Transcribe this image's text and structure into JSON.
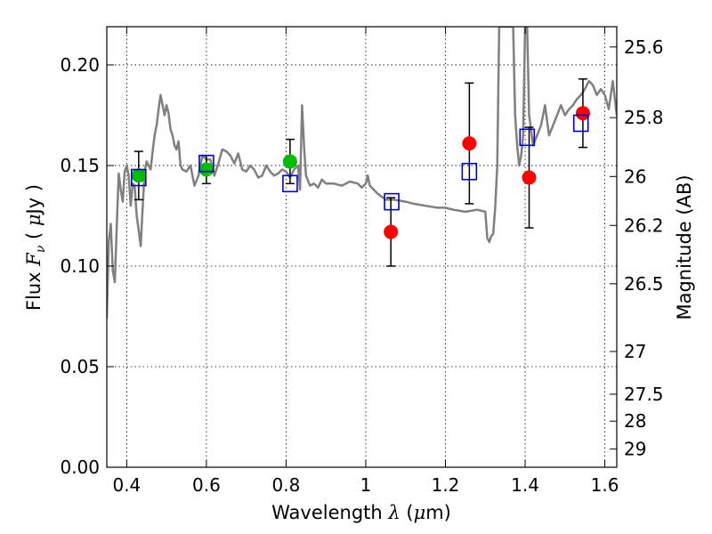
{
  "chart_data": {
    "type": "scatter",
    "xlabel": "Wavelength λ (μm)",
    "xlabel_parts": {
      "prefix": "Wavelength ",
      "symbol": "λ",
      "unit_open": " (",
      "unit_mu": "μ",
      "unit_rest": "m)"
    },
    "ylabel": "Flux F_ν (μJy)",
    "ylabel_parts": {
      "prefix": "Flux ",
      "symbol": "F",
      "subscript": "ν",
      "unit_open": " ( ",
      "unit_mu": "μ",
      "unit_rest": "Jy )"
    },
    "y2label": "Magnitude (AB)",
    "xlim": [
      0.35,
      1.63
    ],
    "ylim": [
      0.0,
      0.219
    ],
    "grid": true,
    "x_ticks": [
      0.4,
      0.6,
      0.8,
      1.0,
      1.2,
      1.4,
      1.6
    ],
    "x_tick_labels": [
      "0.4",
      "0.6",
      "0.8",
      "1",
      "1.2",
      "1.4",
      "1.6"
    ],
    "y_ticks": [
      0.0,
      0.05,
      0.1,
      0.15,
      0.2
    ],
    "y_tick_labels": [
      "0.00",
      "0.05",
      "0.10",
      "0.15",
      "0.20"
    ],
    "y2_ticks": [
      {
        "mag": 25.6,
        "label": "25.6"
      },
      {
        "mag": 25.8,
        "label": "25.8"
      },
      {
        "mag": 26.0,
        "label": "26"
      },
      {
        "mag": 26.2,
        "label": "26.2"
      },
      {
        "mag": 26.5,
        "label": "26.5"
      },
      {
        "mag": 27.0,
        "label": "27"
      },
      {
        "mag": 27.5,
        "label": "27.5"
      },
      {
        "mag": 28.0,
        "label": "28"
      },
      {
        "mag": 29.0,
        "label": "29"
      }
    ],
    "colors": {
      "spectrum": "#808080",
      "green": "#00bb00",
      "red": "#ff0000",
      "model": "#0000cc",
      "error": "#000000"
    },
    "series": [
      {
        "name": "model spectrum",
        "kind": "line",
        "x": [
          0.35,
          0.355,
          0.36,
          0.365,
          0.37,
          0.375,
          0.38,
          0.385,
          0.39,
          0.395,
          0.4,
          0.405,
          0.41,
          0.415,
          0.42,
          0.425,
          0.43,
          0.435,
          0.44,
          0.445,
          0.45,
          0.455,
          0.46,
          0.465,
          0.47,
          0.475,
          0.48,
          0.485,
          0.49,
          0.495,
          0.5,
          0.505,
          0.51,
          0.515,
          0.52,
          0.525,
          0.53,
          0.535,
          0.54,
          0.55,
          0.56,
          0.57,
          0.58,
          0.59,
          0.6,
          0.61,
          0.62,
          0.63,
          0.64,
          0.65,
          0.66,
          0.67,
          0.68,
          0.69,
          0.7,
          0.71,
          0.72,
          0.73,
          0.74,
          0.75,
          0.76,
          0.77,
          0.78,
          0.79,
          0.8,
          0.81,
          0.82,
          0.83,
          0.835,
          0.84,
          0.845,
          0.85,
          0.86,
          0.87,
          0.88,
          0.89,
          0.9,
          0.92,
          0.94,
          0.96,
          0.98,
          0.99,
          1.0,
          1.005,
          1.01,
          1.02,
          1.03,
          1.05,
          1.07,
          1.1,
          1.12,
          1.15,
          1.18,
          1.2,
          1.22,
          1.25,
          1.28,
          1.3,
          1.305,
          1.31,
          1.315,
          1.32,
          1.325,
          1.33,
          1.335,
          1.338,
          1.34,
          1.345,
          1.35,
          1.355,
          1.36,
          1.365,
          1.37,
          1.375,
          1.38,
          1.385,
          1.39,
          1.395,
          1.4,
          1.405,
          1.41,
          1.42,
          1.43,
          1.44,
          1.45,
          1.46,
          1.47,
          1.48,
          1.49,
          1.5,
          1.51,
          1.52,
          1.53,
          1.54,
          1.55,
          1.56,
          1.57,
          1.58,
          1.59,
          1.6,
          1.61,
          1.62,
          1.63
        ],
        "y": [
          0.074,
          0.112,
          0.121,
          0.098,
          0.092,
          0.12,
          0.146,
          0.138,
          0.132,
          0.147,
          0.15,
          0.145,
          0.13,
          0.141,
          0.14,
          0.125,
          0.118,
          0.11,
          0.129,
          0.147,
          0.152,
          0.15,
          0.148,
          0.157,
          0.165,
          0.17,
          0.178,
          0.185,
          0.18,
          0.175,
          0.18,
          0.176,
          0.168,
          0.165,
          0.16,
          0.158,
          0.162,
          0.15,
          0.148,
          0.147,
          0.15,
          0.14,
          0.145,
          0.155,
          0.153,
          0.153,
          0.145,
          0.151,
          0.158,
          0.157,
          0.155,
          0.151,
          0.156,
          0.148,
          0.147,
          0.15,
          0.148,
          0.144,
          0.145,
          0.15,
          0.147,
          0.145,
          0.146,
          0.148,
          0.147,
          0.144,
          0.148,
          0.15,
          0.138,
          0.18,
          0.16,
          0.145,
          0.14,
          0.141,
          0.139,
          0.143,
          0.141,
          0.141,
          0.14,
          0.142,
          0.141,
          0.139,
          0.141,
          0.145,
          0.14,
          0.138,
          0.136,
          0.133,
          0.133,
          0.132,
          0.131,
          0.13,
          0.129,
          0.129,
          0.128,
          0.127,
          0.128,
          0.127,
          0.114,
          0.112,
          0.115,
          0.116,
          0.13,
          0.15,
          0.219,
          0.219,
          0.219,
          0.219,
          0.219,
          0.219,
          0.219,
          0.219,
          0.219,
          0.175,
          0.16,
          0.15,
          0.155,
          0.165,
          0.219,
          0.219,
          0.175,
          0.16,
          0.165,
          0.17,
          0.18,
          0.165,
          0.17,
          0.175,
          0.18,
          0.175,
          0.178,
          0.18,
          0.183,
          0.185,
          0.188,
          0.192,
          0.19,
          0.185,
          0.188,
          0.185,
          0.178,
          0.192,
          0.175
        ]
      },
      {
        "name": "observed (green)",
        "kind": "points",
        "x": [
          0.43,
          0.6,
          0.81
        ],
        "y": [
          0.145,
          0.148,
          0.152
        ],
        "yerr": [
          0.012,
          0.007,
          0.011
        ]
      },
      {
        "name": "observed (red)",
        "kind": "points",
        "x": [
          1.063,
          1.26,
          1.41,
          1.545
        ],
        "y": [
          0.117,
          0.161,
          0.144,
          0.176
        ],
        "yerr_lo": [
          0.017,
          0.03,
          0.025,
          0.017
        ],
        "yerr_hi": [
          0.017,
          0.03,
          0.025,
          0.017
        ],
        "err_center": [
          0.117,
          0.161,
          0.144,
          0.176
        ]
      },
      {
        "name": "model photometry",
        "kind": "squares",
        "x": [
          0.43,
          0.6,
          0.81,
          1.065,
          1.26,
          1.405,
          1.54
        ],
        "y": [
          0.144,
          0.151,
          0.141,
          0.132,
          0.147,
          0.164,
          0.171
        ]
      }
    ]
  }
}
